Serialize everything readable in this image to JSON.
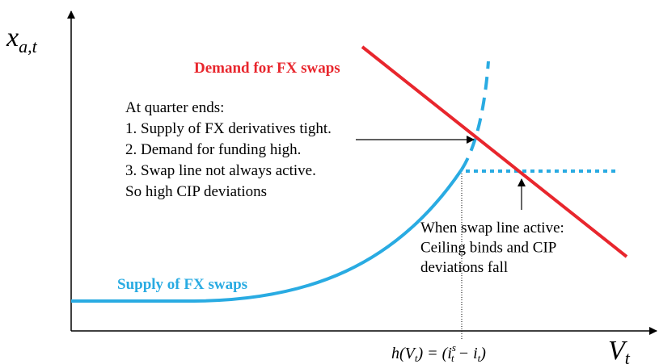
{
  "y_axis_label": {
    "base": "x",
    "sub": "a,t"
  },
  "x_axis_label": {
    "base": "V",
    "sub": "t"
  },
  "threshold_label": {
    "h": "h(V",
    "h_sub": "t",
    "mid": ") = (i",
    "i_sup": "s",
    "i_sub": "t",
    "minus": " − i",
    "end_sub": "t",
    "close": ")"
  },
  "demand_label": "Demand for FX swaps",
  "supply_label": "Supply of FX swaps",
  "quarter_end_note": {
    "lines": [
      "At quarter ends:",
      "1. Supply of FX derivatives tight.",
      "2. Demand for funding high.",
      "3. Swap line not always active.",
      "So high CIP deviations"
    ]
  },
  "swap_line_note": {
    "lines": [
      "When swap line active:",
      "Ceiling binds and CIP",
      "deviations fall"
    ]
  }
}
